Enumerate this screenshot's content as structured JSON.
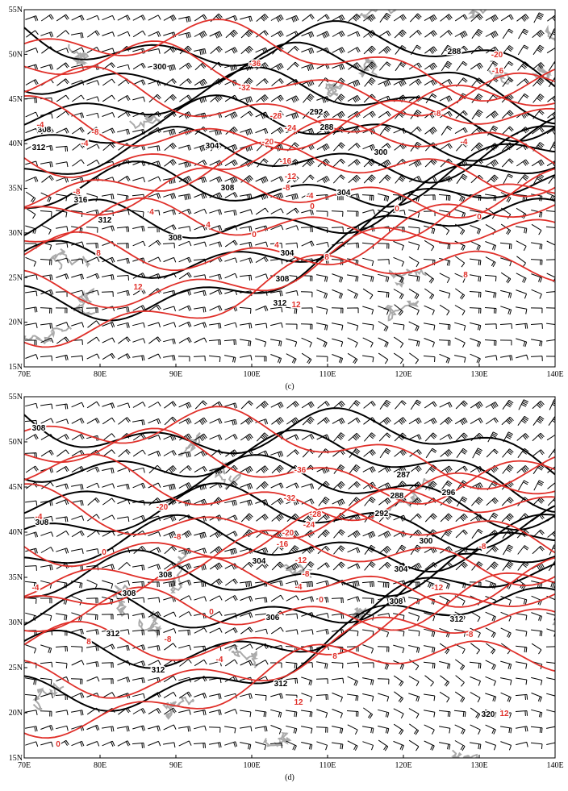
{
  "panels": [
    {
      "label": "(c)",
      "lat_labels": [
        "55N",
        "50N",
        "45N",
        "40N",
        "35N",
        "30N",
        "25N",
        "20N",
        "15N"
      ],
      "lon_labels": [
        "70E",
        "80E",
        "90E",
        "100E",
        "110E",
        "120E",
        "130E",
        "140E"
      ],
      "black_labels": [
        "300",
        "292",
        "288",
        "288",
        "304",
        "300",
        "308",
        "304",
        "312",
        "308",
        "316",
        "312",
        "308",
        "304",
        "308",
        "312"
      ],
      "red_labels": [
        "-36",
        "-32",
        "-28",
        "-24",
        "-20",
        "-16",
        "-12",
        "-8",
        "-4",
        "0",
        "-20",
        "-16",
        "-8",
        "-4",
        "-4",
        "-8",
        "-4",
        "-8",
        "4",
        "4",
        "0",
        "4",
        "8",
        "8",
        "12",
        "12",
        "8",
        "0",
        "0"
      ]
    },
    {
      "label": "(d)",
      "lat_labels": [
        "55N",
        "50N",
        "45N",
        "40N",
        "35N",
        "30N",
        "25N",
        "20N",
        "15N"
      ],
      "lon_labels": [
        "70E",
        "80E",
        "90E",
        "100E",
        "110E",
        "120E",
        "130E",
        "140E"
      ],
      "black_labels": [
        "308",
        "287",
        "288",
        "296",
        "292",
        "300",
        "304",
        "304",
        "308",
        "308",
        "308",
        "312",
        "312",
        "306",
        "312",
        "312",
        "320",
        "308"
      ],
      "red_labels": [
        "-36",
        "-32",
        "-28",
        "-24",
        "-20",
        "-20",
        "-16",
        "-12",
        "-8",
        "-4",
        "0",
        "-4",
        "0",
        "-8",
        "-4",
        "0",
        "-8",
        "8",
        "-4",
        "8",
        "12",
        "12",
        "0",
        "-8",
        "-8",
        "-12"
      ]
    }
  ]
}
